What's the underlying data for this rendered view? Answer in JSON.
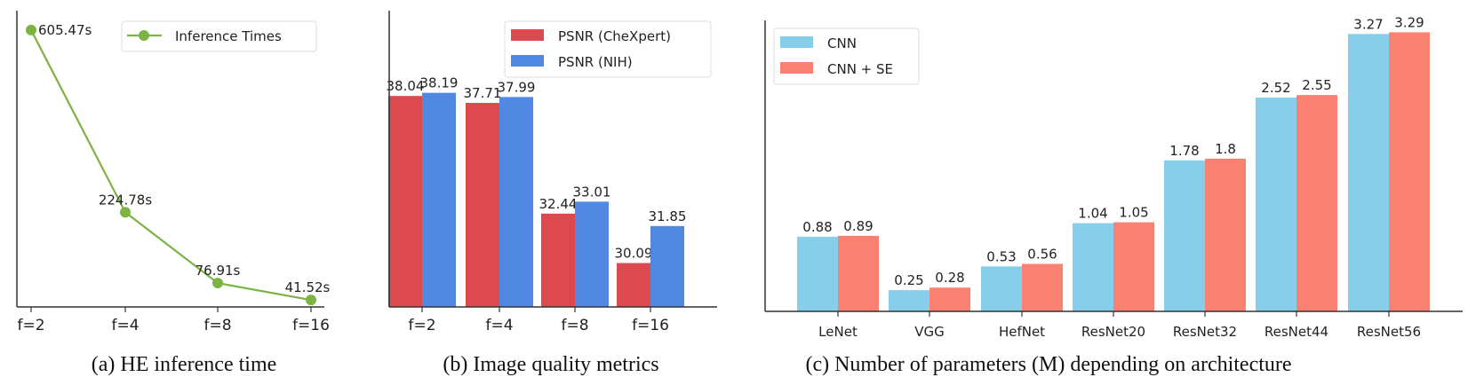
{
  "chart_data": [
    {
      "type": "line",
      "caption": "(a) HE inference time",
      "categories": [
        "f=2",
        "f=4",
        "f=8",
        "f=16"
      ],
      "series": [
        {
          "name": "Inference Times",
          "values": [
            605.47,
            224.78,
            76.91,
            41.52
          ],
          "color": "#7cb342"
        }
      ],
      "data_labels": [
        "605.47s",
        "224.78s",
        "76.91s",
        "41.52s"
      ],
      "ylim": [
        27,
        646
      ],
      "legend": "top-right",
      "grid": false
    },
    {
      "type": "bar",
      "caption": "(b) Image quality metrics",
      "categories": [
        "f=2",
        "f=4",
        "f=8",
        "f=16"
      ],
      "series": [
        {
          "name": "PSNR (CheXpert)",
          "values": [
            38.04,
            37.71,
            32.44,
            30.09
          ],
          "color": "#dc4a4f"
        },
        {
          "name": "PSNR (NIH)",
          "values": [
            38.19,
            37.99,
            33.01,
            31.85
          ],
          "color": "#5189e2"
        }
      ],
      "ylim": [
        28,
        42.1
      ],
      "legend": "top-right",
      "grid": false
    },
    {
      "type": "bar",
      "caption": "(c) Number of parameters (M) depending on architecture",
      "categories": [
        "LeNet",
        "VGG",
        "HefNet",
        "ResNet20",
        "ResNet32",
        "ResNet44",
        "ResNet56"
      ],
      "series": [
        {
          "name": "CNN",
          "values": [
            0.88,
            0.25,
            0.53,
            1.04,
            1.78,
            2.52,
            3.27
          ],
          "color": "#87ceeb"
        },
        {
          "name": "CNN + SE",
          "values": [
            0.89,
            0.28,
            0.56,
            1.05,
            1.8,
            2.55,
            3.29
          ],
          "color": "#fa8072"
        }
      ],
      "ylim": [
        0,
        3.43
      ],
      "legend": "top-left",
      "grid": false
    }
  ]
}
